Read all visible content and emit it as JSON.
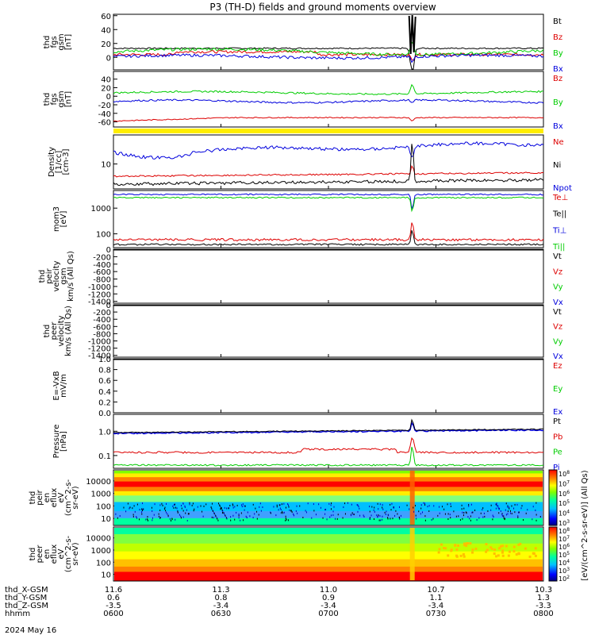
{
  "title": "P3 (TH-D) fields and ground moments overview",
  "date": "2024 May 16",
  "colors": {
    "black": "#000000",
    "red": "#dd0000",
    "green": "#00cc00",
    "blue": "#0000dd",
    "yellow": "#ffee00"
  },
  "chart_data": [
    {
      "type": "line",
      "id": "fgs",
      "ylabel_lines": [
        "thd",
        "fgs",
        "gsm",
        "[nT]"
      ],
      "ylim": [
        -18,
        62
      ],
      "ticks": [
        "60",
        "40",
        "20",
        "0"
      ],
      "tick_values": [
        60,
        40,
        20,
        0
      ],
      "legend": [
        {
          "name": "Bt",
          "color": "black"
        },
        {
          "name": "Bz",
          "color": "red"
        },
        {
          "name": "By",
          "color": "green"
        },
        {
          "name": "Bx",
          "color": "blue"
        }
      ]
    },
    {
      "type": "line",
      "id": "fgs_gse",
      "ylabel_lines": [
        "thd",
        "fgs",
        "gsm",
        "[nT]"
      ],
      "ylim": [
        -72,
        58
      ],
      "ticks": [
        "40",
        "20",
        "0",
        "-20",
        "-40",
        "-60"
      ],
      "tick_values": [
        40,
        20,
        0,
        -20,
        -40,
        -60
      ],
      "legend": [
        {
          "name": "Bz",
          "color": "red"
        },
        {
          "name": "By",
          "color": "green"
        },
        {
          "name": "Bx",
          "color": "blue"
        }
      ]
    },
    {
      "type": "line",
      "id": "density",
      "ylabel_lines": [
        "Density",
        "[1/cc]",
        "[cm-3]"
      ],
      "log": true,
      "ticks": [
        "10"
      ],
      "legend": [
        {
          "name": "Ne",
          "color": "red"
        },
        {
          "name": "Ni",
          "color": "black"
        },
        {
          "name": "Npot",
          "color": "blue"
        }
      ]
    },
    {
      "type": "line",
      "id": "temp",
      "ylabel_lines": [
        "mom3",
        "[eV]"
      ],
      "log": true,
      "ticks": [
        "1000",
        "100"
      ],
      "legend": [
        {
          "name": "Te⊥",
          "color": "red"
        },
        {
          "name": "Te||",
          "color": "black"
        },
        {
          "name": "Ti⊥",
          "color": "blue"
        },
        {
          "name": "Ti||",
          "color": "green"
        }
      ]
    },
    {
      "type": "line",
      "id": "peir_vel",
      "ylabel_lines": [
        "thd",
        "peir",
        "velocity",
        "gsm",
        "km/s (All Qs)"
      ],
      "ylim": [
        -1450,
        0
      ],
      "ticks": [
        "0",
        "-200",
        "-400",
        "-600",
        "-800",
        "-1000",
        "-1200",
        "-1400"
      ],
      "tick_values": [
        0,
        -200,
        -400,
        -600,
        -800,
        -1000,
        -1200,
        -1400
      ],
      "legend": [
        {
          "name": "Vt",
          "color": "black"
        },
        {
          "name": "Vz",
          "color": "red"
        },
        {
          "name": "Vy",
          "color": "green"
        },
        {
          "name": "Vx",
          "color": "blue"
        }
      ]
    },
    {
      "type": "line",
      "id": "peer_vel",
      "ylabel_lines": [
        "thd",
        "peer",
        "velocity",
        "km/s (All Qs)"
      ],
      "ylim": [
        -1450,
        0
      ],
      "ticks": [
        "0",
        "-200",
        "-400",
        "-600",
        "-800",
        "-1000",
        "-1200",
        "-1400"
      ],
      "tick_values": [
        0,
        -200,
        -400,
        -600,
        -800,
        -1000,
        -1200,
        -1400
      ],
      "legend": [
        {
          "name": "Vt",
          "color": "black"
        },
        {
          "name": "Vz",
          "color": "red"
        },
        {
          "name": "Vy",
          "color": "green"
        },
        {
          "name": "Vx",
          "color": "blue"
        }
      ]
    },
    {
      "type": "line",
      "id": "efield",
      "ylabel_lines": [
        "E=-VxB",
        "mV/m"
      ],
      "ylim": [
        0,
        1.0
      ],
      "ticks": [
        "1.0",
        "0.8",
        "0.6",
        "0.4",
        "0.2",
        "0.0"
      ],
      "tick_values": [
        1.0,
        0.8,
        0.6,
        0.4,
        0.2,
        0.0
      ],
      "legend": [
        {
          "name": "Ez",
          "color": "red"
        },
        {
          "name": "Ey",
          "color": "green"
        },
        {
          "name": "Ex",
          "color": "blue"
        }
      ]
    },
    {
      "type": "line",
      "id": "pressure",
      "ylabel_lines": [
        "Pressure",
        "[nPa]"
      ],
      "log": true,
      "ticks": [
        "1.0",
        "0.1"
      ],
      "legend": [
        {
          "name": "Pt",
          "color": "black"
        },
        {
          "name": "Pb",
          "color": "red"
        },
        {
          "name": "Pe",
          "color": "green"
        },
        {
          "name": "Pi",
          "color": "blue"
        }
      ]
    },
    {
      "type": "heatmap",
      "id": "peir_spec",
      "ylabel_lines": [
        "thd",
        "peir",
        "en",
        "eflux",
        "eV",
        "(cm^2-s-",
        "sr-eV)"
      ],
      "ticks": [
        "10000",
        "1000",
        "100",
        "10"
      ]
    },
    {
      "type": "heatmap",
      "id": "peer_spec",
      "ylabel_lines": [
        "thd",
        "peer",
        "en",
        "eflux",
        "eV",
        "(cm^2-s-",
        "sr-eV)"
      ],
      "ticks": [
        "10000",
        "1000",
        "100",
        "10"
      ]
    }
  ],
  "colorbar": {
    "label": "[eV/(cm^2-s-sr-eV)] (All Qs)",
    "ticks_top": [
      "10^8",
      "10^7",
      "10^6",
      "10^5",
      "10^4",
      "10^3"
    ],
    "ticks_bottom": [
      "10^8",
      "10^7",
      "10^6",
      "10^5",
      "10^4",
      "10^3",
      "10^2"
    ]
  },
  "xaxis": {
    "rows": [
      {
        "label": "thd_X-GSM",
        "values": [
          "11.6",
          "11.3",
          "11.0",
          "10.7",
          "10.3"
        ]
      },
      {
        "label": "thd_Y-GSM",
        "values": [
          "0.6",
          "0.8",
          "0.9",
          "1.1",
          "1.3"
        ]
      },
      {
        "label": "thd_Z-GSM",
        "values": [
          "-3.5",
          "-3.4",
          "-3.4",
          "-3.4",
          "-3.3"
        ]
      },
      {
        "label": "hhmm",
        "values": [
          "0600",
          "0630",
          "0700",
          "0730",
          "0800"
        ]
      }
    ]
  }
}
